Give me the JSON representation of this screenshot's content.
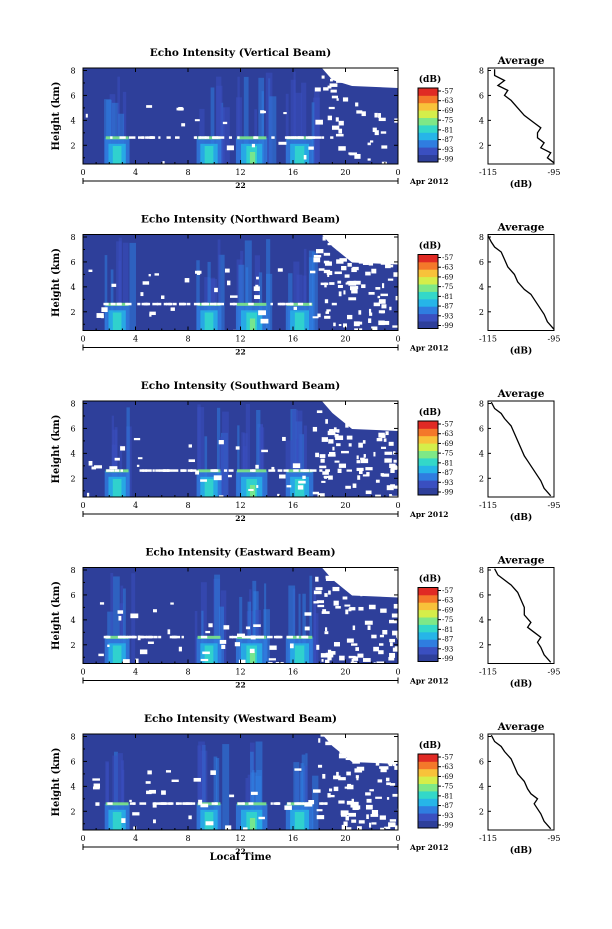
{
  "colors": {
    "background": "#2e3f9a",
    "colormap": [
      "#2e3f9a",
      "#3a4fc0",
      "#2f7de0",
      "#26b5e8",
      "#33d8c9",
      "#7ee887",
      "#d5ee4a",
      "#f8c23a",
      "#f4782a",
      "#e02a24"
    ]
  },
  "shared": {
    "x_ticks": [
      "0",
      "4",
      "8",
      "12",
      "16",
      "20",
      "0"
    ],
    "date_day": "22",
    "date_label": "Apr 2012",
    "x_title": "Local Time",
    "y_label": "Height (km)",
    "y_ticks": [
      "2",
      "4",
      "6",
      "8"
    ],
    "cbar_unit": "(dB)",
    "cbar_ticks": [
      "-57",
      "-63",
      "-69",
      "-75",
      "-81",
      "-87",
      "-93",
      "-99"
    ],
    "avg_title": "Average",
    "avg_xticks": [
      "-115",
      "-95"
    ],
    "avg_xunit": "(dB)",
    "avg_yticks": [
      "2",
      "4",
      "6",
      "8"
    ]
  },
  "chart_data": [
    {
      "type": "heatmap",
      "title": "Echo Intensity (Vertical Beam)",
      "xlabel": "",
      "ylabel": "Height (km)",
      "xlim": [
        0,
        24
      ],
      "ylim": [
        0.5,
        8.2
      ],
      "colorbar": {
        "unit": "(dB)",
        "range": [
          -99,
          -57
        ]
      },
      "features": {
        "melting_layer_km": 2.6,
        "rain_bands_h": [
          [
            1.5,
            3.7
          ],
          [
            8.5,
            10.7
          ],
          [
            11.5,
            14.2
          ],
          [
            15.3,
            17.7
          ]
        ]
      },
      "average_profile": {
        "xlim": [
          -115,
          -95
        ],
        "ylim": [
          0.5,
          8.2
        ],
        "x": [
          -95,
          -97,
          -96,
          -99,
          -98,
          -100,
          -100,
          -99,
          -101,
          -104,
          -106,
          -108,
          -110,
          -109,
          -112,
          -110,
          -113,
          -113
        ],
        "y": [
          0.6,
          1.0,
          1.4,
          1.8,
          2.2,
          2.6,
          3.0,
          3.4,
          3.8,
          4.4,
          5.0,
          5.6,
          6.0,
          6.4,
          6.8,
          7.2,
          7.6,
          8.1
        ]
      }
    },
    {
      "type": "heatmap",
      "title": "Echo Intensity (Northward Beam)",
      "xlabel": "",
      "ylabel": "Height (km)",
      "xlim": [
        0,
        24
      ],
      "ylim": [
        0.5,
        8.2
      ],
      "colorbar": {
        "unit": "(dB)",
        "range": [
          -99,
          -57
        ]
      },
      "features": {
        "melting_layer_km": 2.6,
        "rain_bands_h": [
          [
            1.5,
            3.7
          ],
          [
            8.5,
            10.7
          ],
          [
            11.5,
            14.2
          ],
          [
            15.3,
            17.7
          ]
        ]
      },
      "average_profile": {
        "xlim": [
          -115,
          -95
        ],
        "ylim": [
          0.5,
          8.2
        ],
        "x": [
          -95,
          -97,
          -98,
          -99,
          -100,
          -101,
          -102,
          -104,
          -106,
          -107,
          -109,
          -110,
          -111,
          -113,
          -114,
          -115
        ],
        "y": [
          0.6,
          1.2,
          1.8,
          2.2,
          2.6,
          3.0,
          3.4,
          3.8,
          4.4,
          5.0,
          5.6,
          6.2,
          6.8,
          7.2,
          7.6,
          8.1
        ]
      }
    },
    {
      "type": "heatmap",
      "title": "Echo Intensity (Southward Beam)",
      "xlabel": "",
      "ylabel": "Height (km)",
      "xlim": [
        0,
        24
      ],
      "ylim": [
        0.5,
        8.2
      ],
      "colorbar": {
        "unit": "(dB)",
        "range": [
          -99,
          -57
        ]
      },
      "features": {
        "melting_layer_km": 2.6,
        "rain_bands_h": [
          [
            1.5,
            3.7
          ],
          [
            8.5,
            10.7
          ],
          [
            11.5,
            14.2
          ],
          [
            15.3,
            17.7
          ]
        ]
      },
      "average_profile": {
        "xlim": [
          -115,
          -95
        ],
        "ylim": [
          0.5,
          8.2
        ],
        "x": [
          -96,
          -98,
          -99,
          -100,
          -101,
          -102,
          -103,
          -104,
          -105,
          -106,
          -107,
          -108,
          -110,
          -111,
          -113,
          -114
        ],
        "y": [
          0.6,
          1.2,
          1.8,
          2.2,
          2.6,
          3.0,
          3.4,
          3.8,
          4.4,
          5.0,
          5.6,
          6.2,
          6.8,
          7.2,
          7.6,
          8.1
        ]
      }
    },
    {
      "type": "heatmap",
      "title": "Echo Intensity (Eastward Beam)",
      "xlabel": "",
      "ylabel": "Height (km)",
      "xlim": [
        0,
        24
      ],
      "ylim": [
        0.5,
        8.2
      ],
      "colorbar": {
        "unit": "(dB)",
        "range": [
          -99,
          -57
        ]
      },
      "features": {
        "melting_layer_km": 2.6,
        "rain_bands_h": [
          [
            1.5,
            3.7
          ],
          [
            8.5,
            10.7
          ],
          [
            11.5,
            14.2
          ],
          [
            15.3,
            17.7
          ]
        ]
      },
      "average_profile": {
        "xlim": [
          -115,
          -95
        ],
        "ylim": [
          0.5,
          8.2
        ],
        "x": [
          -96,
          -98,
          -99,
          -100,
          -99,
          -101,
          -103,
          -102,
          -104,
          -104,
          -105,
          -106,
          -108,
          -110,
          -112,
          -113
        ],
        "y": [
          0.6,
          1.2,
          1.8,
          2.2,
          2.6,
          3.0,
          3.4,
          3.8,
          4.4,
          5.0,
          5.6,
          6.2,
          6.8,
          7.2,
          7.6,
          8.1
        ]
      }
    },
    {
      "type": "heatmap",
      "title": "Echo Intensity (Westward Beam)",
      "xlabel": "Local Time",
      "ylabel": "Height (km)",
      "xlim": [
        0,
        24
      ],
      "ylim": [
        0.5,
        8.2
      ],
      "colorbar": {
        "unit": "(dB)",
        "range": [
          -99,
          -57
        ]
      },
      "features": {
        "melting_layer_km": 2.6,
        "rain_bands_h": [
          [
            1.5,
            3.7
          ],
          [
            8.5,
            10.7
          ],
          [
            11.5,
            14.2
          ],
          [
            15.3,
            17.7
          ]
        ]
      },
      "average_profile": {
        "xlim": [
          -115,
          -95
        ],
        "ylim": [
          0.5,
          8.2
        ],
        "x": [
          -96,
          -98,
          -99,
          -100,
          -101,
          -100,
          -102,
          -103,
          -104,
          -106,
          -107,
          -108,
          -110,
          -111,
          -113,
          -114
        ],
        "y": [
          0.6,
          1.2,
          1.8,
          2.2,
          2.6,
          3.0,
          3.4,
          3.8,
          4.4,
          5.0,
          5.6,
          6.2,
          6.8,
          7.2,
          7.6,
          8.1
        ]
      }
    }
  ]
}
